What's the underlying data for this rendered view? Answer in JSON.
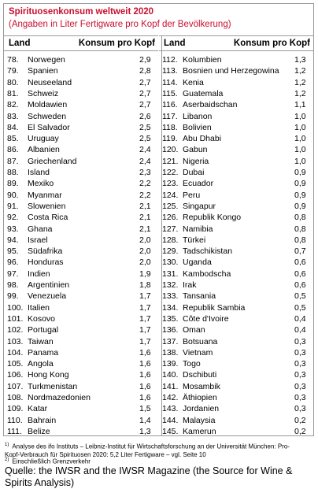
{
  "header": {
    "title": "Spirituosenkonsum weltweit 2020",
    "subtitle": "(Angaben in Liter Fertigware pro Kopf der Bevölkerung)"
  },
  "table": {
    "columns": [
      "Land",
      "Konsum pro Kopf"
    ],
    "left": [
      [
        "78.",
        "Norwegen",
        "2,9"
      ],
      [
        "79.",
        "Spanien",
        "2,8"
      ],
      [
        "80.",
        "Neuseeland",
        "2,7"
      ],
      [
        "81.",
        "Schweiz",
        "2,7"
      ],
      [
        "82.",
        "Moldawien",
        "2,7"
      ],
      [
        "83.",
        "Schweden",
        "2,6"
      ],
      [
        "84.",
        "El Salvador",
        "2,5"
      ],
      [
        "85.",
        "Uruguay",
        "2,5"
      ],
      [
        "86.",
        "Albanien",
        "2,4"
      ],
      [
        "87.",
        "Griechenland",
        "2,4"
      ],
      [
        "88.",
        "Island",
        "2,3"
      ],
      [
        "89.",
        "Mexiko",
        "2,2"
      ],
      [
        "90.",
        "Myanmar",
        "2,2"
      ],
      [
        "91.",
        "Slowenien",
        "2,1"
      ],
      [
        "92.",
        "Costa Rica",
        "2,1"
      ],
      [
        "93.",
        "Ghana",
        "2,1"
      ],
      [
        "94.",
        "Israel",
        "2,0"
      ],
      [
        "95.",
        "Südafrika",
        "2,0"
      ],
      [
        "96.",
        "Honduras",
        "2,0"
      ],
      [
        "97.",
        "Indien",
        "1,9"
      ],
      [
        "98.",
        "Argentinien",
        "1,8"
      ],
      [
        "99.",
        "Venezuela",
        "1,7"
      ],
      [
        "100.",
        "Italien",
        "1,7"
      ],
      [
        "101.",
        "Kosovo",
        "1,7"
      ],
      [
        "102.",
        "Portugal",
        "1,7"
      ],
      [
        "103.",
        "Taiwan",
        "1,7"
      ],
      [
        "104.",
        "Panama",
        "1,6"
      ],
      [
        "105.",
        "Angola",
        "1,6"
      ],
      [
        "106.",
        "Hong Kong",
        "1,6"
      ],
      [
        "107.",
        "Turkmenistan",
        "1,6"
      ],
      [
        "108.",
        "Nordmazedonien",
        "1,6"
      ],
      [
        "109.",
        "Katar",
        "1,5"
      ],
      [
        "110.",
        "Bahrain",
        "1,4"
      ],
      [
        "111.",
        "Belize",
        "1,3"
      ]
    ],
    "right": [
      [
        "112.",
        "Kolumbien",
        "1,3"
      ],
      [
        "113.",
        "Bosnien und Herzegowina",
        "1,2"
      ],
      [
        "114.",
        "Kenia",
        "1,2"
      ],
      [
        "115.",
        "Guatemala",
        "1,2"
      ],
      [
        "116.",
        "Aserbaidschan",
        "1,1"
      ],
      [
        "117.",
        "Libanon",
        "1,0"
      ],
      [
        "118.",
        "Bolivien",
        "1,0"
      ],
      [
        "119.",
        "Abu Dhabi",
        "1,0"
      ],
      [
        "120.",
        "Gabun",
        "1,0"
      ],
      [
        "121.",
        "Nigeria",
        "1,0"
      ],
      [
        "122.",
        "Dubai",
        "0,9"
      ],
      [
        "123.",
        "Ecuador",
        "0,9"
      ],
      [
        "124.",
        "Peru",
        "0,9"
      ],
      [
        "125.",
        "Singapur",
        "0,9"
      ],
      [
        "126.",
        "Republik Kongo",
        "0,8"
      ],
      [
        "127.",
        "Namibia",
        "0,8"
      ],
      [
        "128.",
        "Türkei",
        "0,8"
      ],
      [
        "129.",
        "Tadschikistan",
        "0,7"
      ],
      [
        "130.",
        "Uganda",
        "0,6"
      ],
      [
        "131.",
        "Kambodscha",
        "0,6"
      ],
      [
        "132.",
        "Irak",
        "0,6"
      ],
      [
        "133.",
        "Tansania",
        "0,5"
      ],
      [
        "134.",
        "Republik Sambia",
        "0,5"
      ],
      [
        "135.",
        "Côte d'Ivoire",
        "0,4"
      ],
      [
        "136.",
        "Oman",
        "0,4"
      ],
      [
        "137.",
        "Botsuana",
        "0,3"
      ],
      [
        "138.",
        "Vietnam",
        "0,3"
      ],
      [
        "139.",
        "Togo",
        "0,3"
      ],
      [
        "140.",
        "Dschibuti",
        "0,3"
      ],
      [
        "141.",
        "Mosambik",
        "0,3"
      ],
      [
        "142.",
        "Äthiopien",
        "0,3"
      ],
      [
        "143.",
        "Jordanien",
        "0,3"
      ],
      [
        "144.",
        "Malaysia",
        "0,2"
      ],
      [
        "145.",
        "Kamerun",
        "0,2"
      ]
    ]
  },
  "footnotes": [
    {
      "mark": "1)",
      "text": "Analyse des ifo Instituts – Leibniz-Institut für Wirtschaftsforschung an der Universität München: Pro-Kopf-Verbrauch für Spirituosen 2020: 5,2 Liter Fertigware – vgl. Seite 10"
    },
    {
      "mark": "2)",
      "text": "Einschließlich Grenzverkehr"
    }
  ],
  "source": "Quelle: the IWSR and the IWSR Magazine (the Source for Wine & Spirits Analysis)"
}
